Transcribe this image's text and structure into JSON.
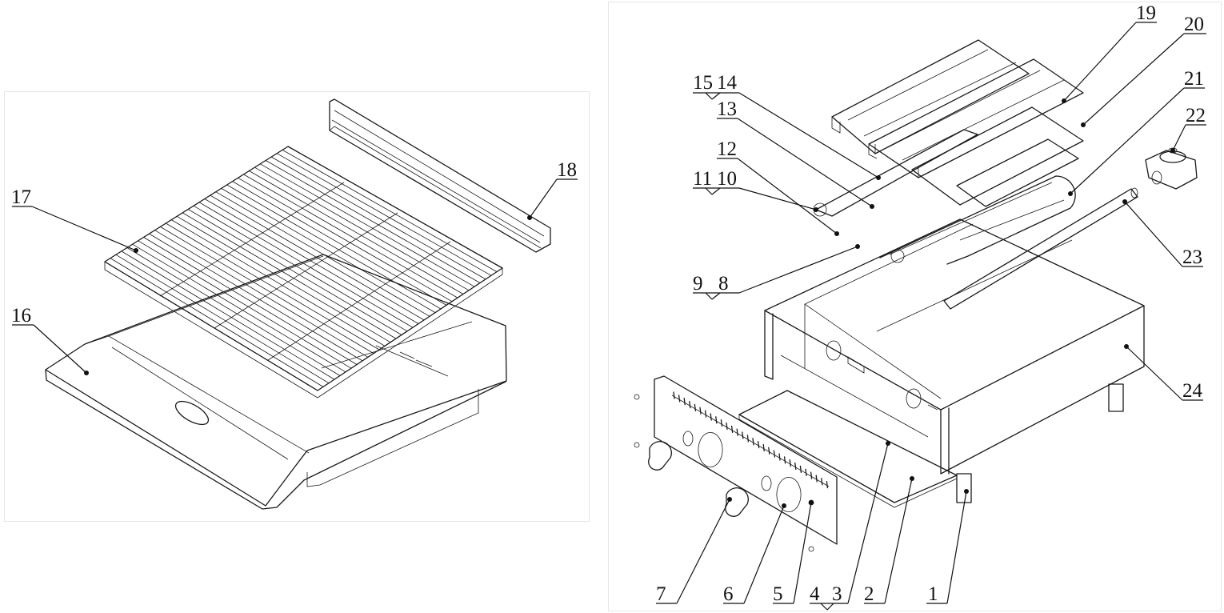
{
  "callouts": {
    "c1": "1",
    "c2": "2",
    "c3": "3",
    "c4": "4",
    "c5": "5",
    "c6": "6",
    "c7": "7",
    "c8": "8",
    "c9": "9",
    "c10": "10",
    "c11": "11",
    "c12": "12",
    "c13": "13",
    "c14": "14",
    "c15": "15",
    "c16": "16",
    "c17": "17",
    "c18": "18",
    "c19": "19",
    "c20": "20",
    "c21": "21",
    "c22": "22",
    "c23": "23",
    "c24": "24"
  },
  "colors": {
    "line": "#1a1a1a",
    "panel_border": "#e6e6e6",
    "background": "#ffffff"
  }
}
